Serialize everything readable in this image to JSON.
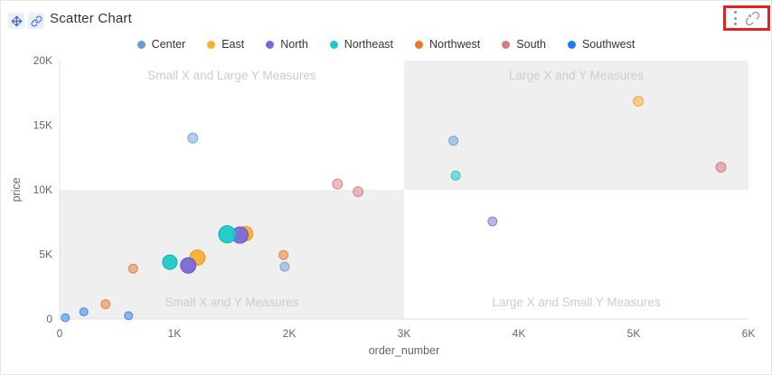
{
  "card": {
    "title": "Scatter Chart"
  },
  "header": {
    "icons": [
      {
        "name": "move-icon",
        "color": "#4a66c0"
      },
      {
        "name": "link-icon",
        "color": "#5577d9"
      }
    ],
    "actions": {
      "more_icon": "ellipsis-vertical",
      "unlink_icon": "broken-link",
      "annotation_border_color": "#e02222"
    }
  },
  "legend": {
    "items": [
      {
        "label": "Center",
        "color": "#6b9bd0"
      },
      {
        "label": "East",
        "color": "#fbae33"
      },
      {
        "label": "North",
        "color": "#7b68d8"
      },
      {
        "label": "Northeast",
        "color": "#1ec9c9"
      },
      {
        "label": "Northwest",
        "color": "#f0742a"
      },
      {
        "label": "South",
        "color": "#d97a80"
      },
      {
        "label": "Southwest",
        "color": "#1f7bf4"
      }
    ]
  },
  "chart_data": {
    "type": "scatter",
    "xlabel": "order_number",
    "ylabel": "price",
    "xlim": [
      0,
      6000
    ],
    "ylim": [
      0,
      20000
    ],
    "x_ticks": [
      {
        "v": 0,
        "label": "0"
      },
      {
        "v": 1000,
        "label": "1K"
      },
      {
        "v": 2000,
        "label": "2K"
      },
      {
        "v": 3000,
        "label": "3K"
      },
      {
        "v": 4000,
        "label": "4K"
      },
      {
        "v": 5000,
        "label": "5K"
      },
      {
        "v": 6000,
        "label": "6K"
      }
    ],
    "y_ticks": [
      {
        "v": 0,
        "label": "0"
      },
      {
        "v": 5000,
        "label": "5K"
      },
      {
        "v": 10000,
        "label": "10K"
      },
      {
        "v": 15000,
        "label": "15K"
      },
      {
        "v": 20000,
        "label": "20K"
      }
    ],
    "x_split": 3000,
    "y_split": 10000,
    "quadrant_shade_color": "#efefef",
    "quadrant_label_color": "#cccccc",
    "axis_text_color": "#666666",
    "axis_line_color": "#e0e0e0",
    "quadrants": [
      {
        "position": "top-left",
        "label": "Small X and Large Y Measures",
        "shaded": false
      },
      {
        "position": "top-right",
        "label": "Large X and Y Measures",
        "shaded": true
      },
      {
        "position": "bottom-left",
        "label": "Small X and Y Measures",
        "shaded": true
      },
      {
        "position": "bottom-right",
        "label": "Large X and Small Y Measures",
        "shaded": false
      }
    ],
    "series_colors": {
      "Center": {
        "fill": "#6b9bd0",
        "stroke": "#4e86c4"
      },
      "East": {
        "fill": "#fbae33",
        "stroke": "#e89a1c"
      },
      "North": {
        "fill": "#7b68d8",
        "stroke": "#6551c4"
      },
      "Northeast": {
        "fill": "#1ec9c9",
        "stroke": "#0fafb4"
      },
      "Northwest": {
        "fill": "#f0742a",
        "stroke": "#d95f14"
      },
      "South": {
        "fill": "#d97a80",
        "stroke": "#c4636b"
      },
      "Southwest": {
        "fill": "#1f7bf4",
        "stroke": "#0f63d6"
      }
    },
    "points": [
      {
        "series": "Southwest",
        "x": 50,
        "y": 100,
        "r": 4.5,
        "opacity": 0.5
      },
      {
        "series": "Southwest",
        "x": 210,
        "y": 550,
        "r": 4.5,
        "opacity": 0.5
      },
      {
        "series": "Northwest",
        "x": 400,
        "y": 1150,
        "r": 5,
        "opacity": 0.5
      },
      {
        "series": "Southwest",
        "x": 600,
        "y": 250,
        "r": 4.5,
        "opacity": 0.5
      },
      {
        "series": "Northwest",
        "x": 640,
        "y": 3900,
        "r": 5,
        "opacity": 0.5
      },
      {
        "series": "Center",
        "x": 1160,
        "y": 14000,
        "r": 5.5,
        "opacity": 0.5
      },
      {
        "series": "Northeast",
        "x": 960,
        "y": 4400,
        "r": 8,
        "opacity": 0.95
      },
      {
        "series": "East",
        "x": 1200,
        "y": 4750,
        "r": 8.5,
        "opacity": 0.95
      },
      {
        "series": "North",
        "x": 1120,
        "y": 4150,
        "r": 8.5,
        "opacity": 0.95
      },
      {
        "series": "East",
        "x": 1620,
        "y": 6600,
        "r": 8,
        "opacity": 0.95
      },
      {
        "series": "North",
        "x": 1570,
        "y": 6500,
        "r": 9,
        "opacity": 0.95
      },
      {
        "series": "Northeast",
        "x": 1460,
        "y": 6550,
        "r": 9.5,
        "opacity": 0.95
      },
      {
        "series": "Northwest",
        "x": 1950,
        "y": 4950,
        "r": 5,
        "opacity": 0.5
      },
      {
        "series": "Center",
        "x": 1960,
        "y": 4050,
        "r": 5,
        "opacity": 0.5
      },
      {
        "series": "South",
        "x": 2420,
        "y": 10450,
        "r": 5.5,
        "opacity": 0.5
      },
      {
        "series": "South",
        "x": 2600,
        "y": 9850,
        "r": 5.5,
        "opacity": 0.5
      },
      {
        "series": "Center",
        "x": 3430,
        "y": 13800,
        "r": 5,
        "opacity": 0.5
      },
      {
        "series": "Northeast",
        "x": 3450,
        "y": 11100,
        "r": 5,
        "opacity": 0.55
      },
      {
        "series": "North",
        "x": 3770,
        "y": 7550,
        "r": 5,
        "opacity": 0.5
      },
      {
        "series": "East",
        "x": 5040,
        "y": 16850,
        "r": 5.5,
        "opacity": 0.55
      },
      {
        "series": "South",
        "x": 5760,
        "y": 11750,
        "r": 5.5,
        "opacity": 0.55
      }
    ]
  }
}
